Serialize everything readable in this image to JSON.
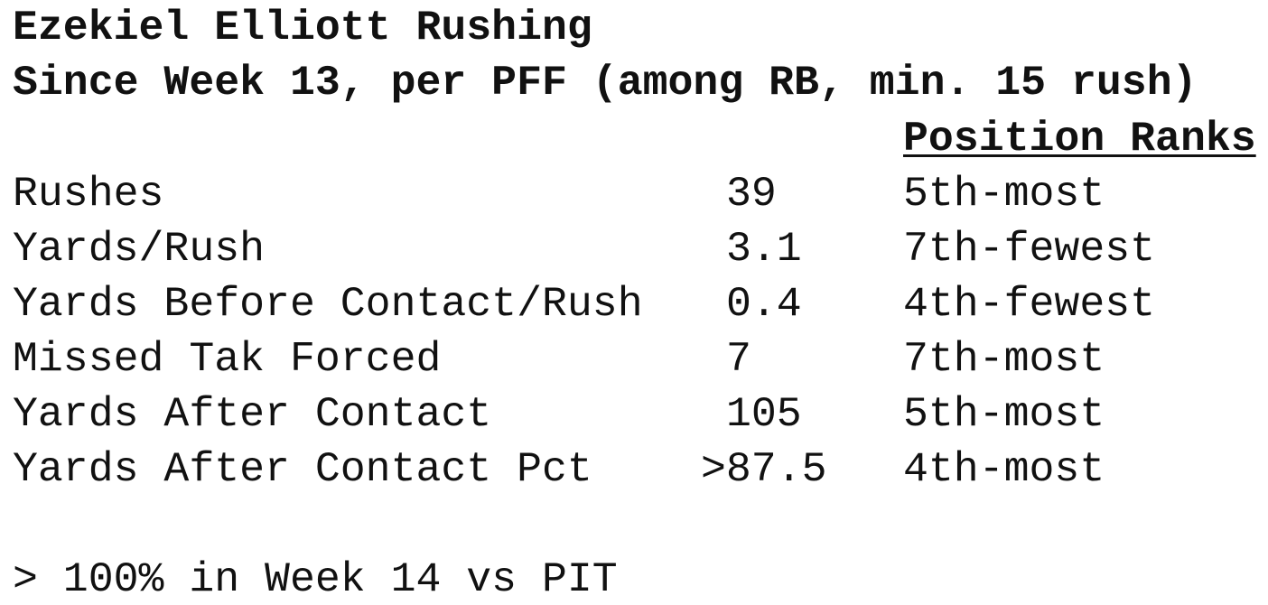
{
  "header": {
    "title": "Ezekiel Elliott Rushing",
    "subtitle": "Since Week 13, per PFF (among RB, min. 15 rush)"
  },
  "table": {
    "rank_header": "Position Ranks",
    "rows": [
      [
        "Rushes",
        "39",
        "5th-most"
      ],
      [
        "Yards/Rush",
        "3.1",
        "7th-fewest"
      ],
      [
        "Yards Before Contact/Rush",
        "0.4",
        "4th-fewest"
      ],
      [
        "Missed Tak Forced",
        "7",
        "7th-most"
      ],
      [
        "Yards After Contact",
        "105",
        "5th-most"
      ],
      [
        "Yards After Contact Pct",
        ">87.5",
        "4th-most"
      ]
    ]
  },
  "footnote": "> 100% in Week 14 vs PIT"
}
